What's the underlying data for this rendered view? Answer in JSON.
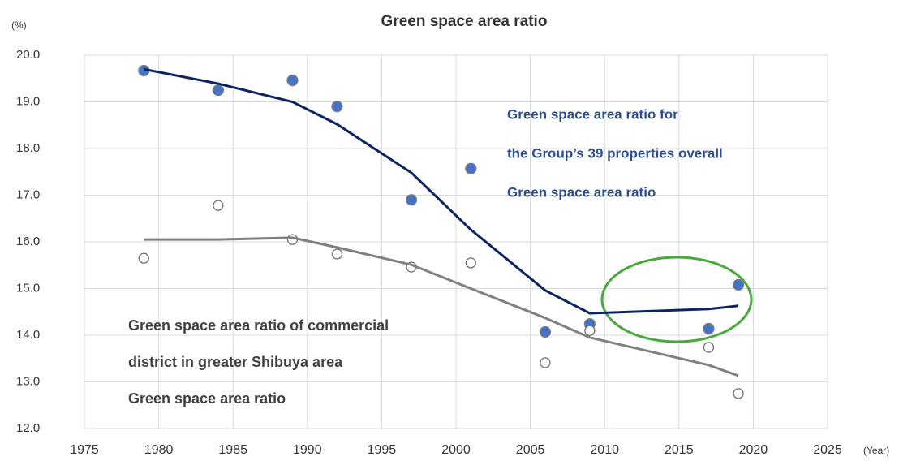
{
  "chart_data": {
    "type": "line",
    "title": "Green space area ratio",
    "y_unit": "(%)",
    "x_unit": "(Year)",
    "x": [
      1979,
      1984,
      1989,
      1992,
      1997,
      2001,
      2006,
      2009,
      2017,
      2019
    ],
    "series": [
      {
        "style": "markers",
        "color": "#4472c4",
        "values": [
          19.67,
          19.25,
          19.46,
          18.9,
          16.9,
          17.57,
          14.07,
          14.24,
          14.14,
          15.08
        ]
      },
      {
        "style": "line",
        "color": "#0c2461",
        "values": [
          19.7,
          19.39,
          19.0,
          18.52,
          17.48,
          16.26,
          14.96,
          14.47,
          14.56,
          14.63
        ]
      },
      {
        "style": "hollow-markers",
        "color": "#6f6f6f",
        "values": [
          15.65,
          16.78,
          16.05,
          15.74,
          15.46,
          15.55,
          13.41,
          14.1,
          13.74,
          12.75
        ]
      },
      {
        "style": "line",
        "color": "#808080",
        "values": [
          16.05,
          16.05,
          16.09,
          15.88,
          15.51,
          15.0,
          14.37,
          13.95,
          13.36,
          13.13
        ]
      }
    ],
    "xlim": [
      1975,
      2025
    ],
    "xticks": [
      1975,
      1980,
      1985,
      1990,
      1995,
      2000,
      2005,
      2010,
      2015,
      2020,
      2025
    ],
    "ylim": [
      12,
      20
    ],
    "yticks": [
      {
        "value": 20,
        "label": "20.0"
      },
      {
        "value": 19,
        "label": "19.0"
      },
      {
        "value": 18,
        "label": "18.0"
      },
      {
        "value": 17,
        "label": "17.0"
      },
      {
        "value": 16,
        "label": "16.0"
      },
      {
        "value": 15,
        "label": "15.0"
      },
      {
        "value": 14,
        "label": "14.0"
      },
      {
        "value": 13,
        "label": "13.0"
      },
      {
        "value": 12,
        "label": "12.0"
      }
    ],
    "grid": true,
    "annotations": [
      {
        "color": "#2f4f8f",
        "lines": [
          "Green space area ratio for",
          "the Group’s 39 properties overall",
          "Green space area ratio"
        ]
      },
      {
        "color": "#404040",
        "lines": [
          "Green space area ratio of commercial",
          "district in greater Shibuya area",
          "Green space area ratio"
        ]
      }
    ]
  }
}
